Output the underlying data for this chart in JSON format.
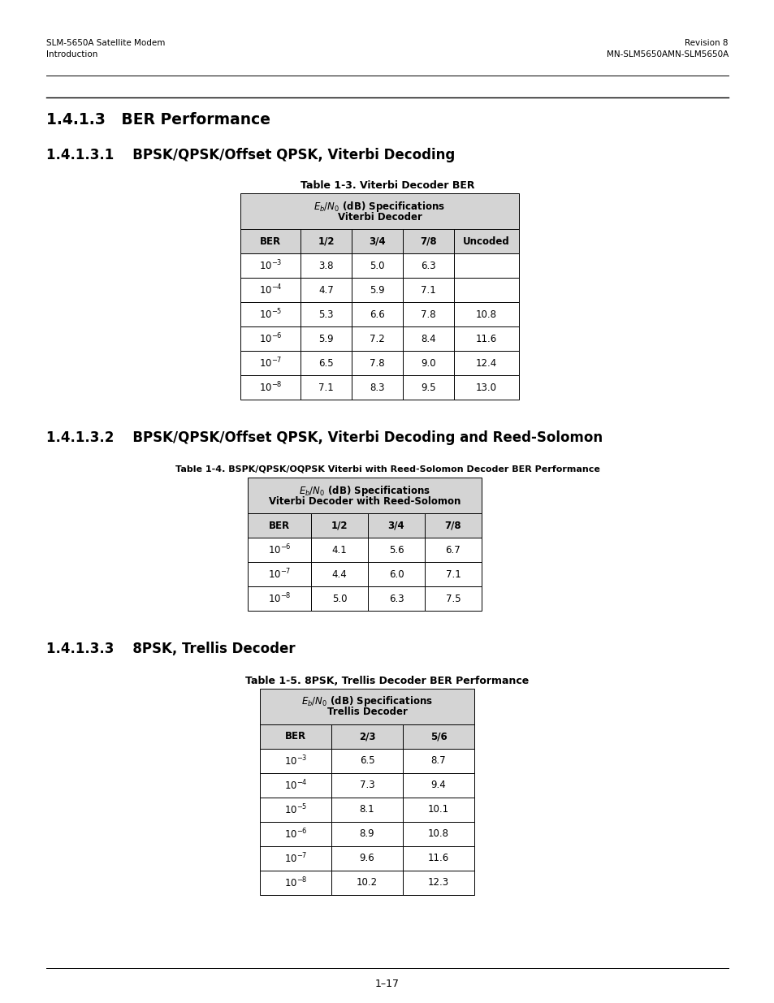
{
  "header_left_line1": "SLM-5650A Satellite Modem",
  "header_left_line2": "Introduction",
  "header_right_line1": "Revision 8",
  "header_right_line2": "MN-SLM5650AMN-SLM5650A",
  "section_title": "1.4.1.3   BER Performance",
  "subsection1_title": "1.4.1.3.1    BPSK/QPSK/Offset QPSK, Viterbi Decoding",
  "table1_caption": "Table 1-3. Viterbi Decoder BER",
  "table1_header_line1": "Eb/N₀ (dB) Specifications",
  "table1_header_line2": "Viterbi Decoder",
  "table1_col_headers": [
    "BER",
    "1/2",
    "3/4",
    "7/8",
    "Uncoded"
  ],
  "table1_rows": [
    [
      "10-3",
      "3.8",
      "5.0",
      "6.3",
      ""
    ],
    [
      "10-4",
      "4.7",
      "5.9",
      "7.1",
      ""
    ],
    [
      "10-5",
      "5.3",
      "6.6",
      "7.8",
      "10.8"
    ],
    [
      "10-6",
      "5.9",
      "7.2",
      "8.4",
      "11.6"
    ],
    [
      "10-7",
      "6.5",
      "7.8",
      "9.0",
      "12.4"
    ],
    [
      "10-8",
      "7.1",
      "8.3",
      "9.5",
      "13.0"
    ]
  ],
  "subsection2_title": "1.4.1.3.2    BPSK/QPSK/Offset QPSK, Viterbi Decoding and Reed-Solomon",
  "table2_caption": "Table 1-4. BSPK/QPSK/OQPSK Viterbi with Reed-Solomon Decoder BER Performance",
  "table2_header_line1": "Eb/N₀ (dB) Specifications",
  "table2_header_line2": "Viterbi Decoder with Reed-Solomon",
  "table2_col_headers": [
    "BER",
    "1/2",
    "3/4",
    "7/8"
  ],
  "table2_rows": [
    [
      "10-6",
      "4.1",
      "5.6",
      "6.7"
    ],
    [
      "10-7",
      "4.4",
      "6.0",
      "7.1"
    ],
    [
      "10-8",
      "5.0",
      "6.3",
      "7.5"
    ]
  ],
  "subsection3_title": "1.4.1.3.3    8PSK, Trellis Decoder",
  "table3_caption": "Table 1-5. 8PSK, Trellis Decoder BER Performance",
  "table3_header_line1": "Eb/N₀ (dB) Specifications",
  "table3_header_line2": "Trellis Decoder",
  "table3_col_headers": [
    "BER",
    "2/3",
    "5/6"
  ],
  "table3_rows": [
    [
      "10-3",
      "6.5",
      "8.7"
    ],
    [
      "10-4",
      "7.3",
      "9.4"
    ],
    [
      "10-5",
      "8.1",
      "10.1"
    ],
    [
      "10-6",
      "8.9",
      "10.8"
    ],
    [
      "10-7",
      "9.6",
      "11.6"
    ],
    [
      "10-8",
      "10.2",
      "12.3"
    ]
  ],
  "footer_text": "1–17",
  "bg_color": "#ffffff",
  "table_header_bg": "#d4d4d4",
  "table_border_color": "#000000",
  "text_color": "#000000"
}
